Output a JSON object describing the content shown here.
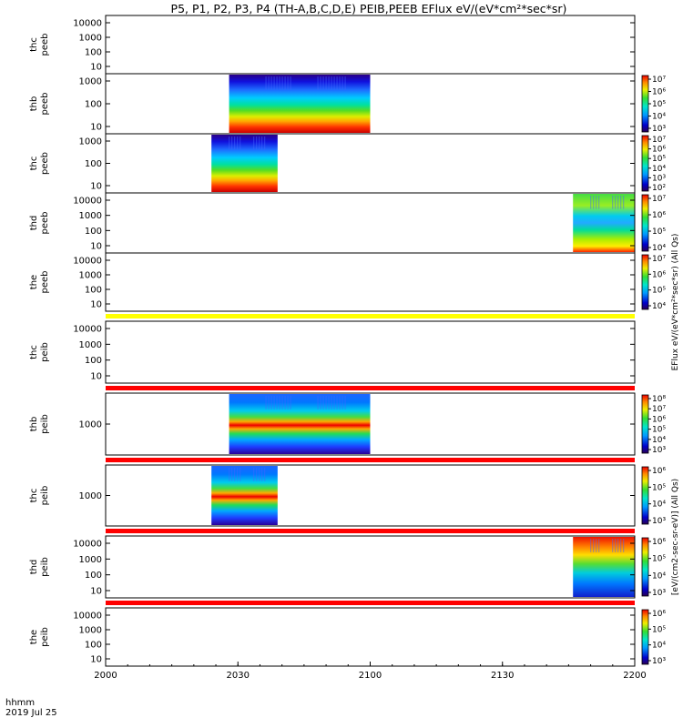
{
  "chart_data": {
    "type": "heatmap",
    "title": "P5, P1, P2, P3, P4 (TH-A,B,C,D,E) PEIB,PEEB EFlux eV/(eV*cm²*sec*sr)",
    "time_unit_label": "hhmm",
    "date_label": "2019 Jul 25",
    "x_ticks": [
      "2000",
      "2030",
      "2100",
      "2130",
      "2200"
    ],
    "x_range": [
      "2000",
      "2200"
    ],
    "eflux_label_peeb": "EFlux eV/(eV*cm²*sec*sr) (All Qs)",
    "eflux_label_peib": "[eV/(cm2-sec-sr-eV)] (All Qs)",
    "panels": [
      {
        "probe": "thc",
        "instrument": "peeb",
        "y_ticks": [
          "10000",
          "1000",
          "100",
          "10"
        ],
        "log_scale": true,
        "colorbar": false,
        "data_span": null
      },
      {
        "probe": "thb",
        "instrument": "peeb",
        "y_ticks": [
          "1000",
          "100",
          "10"
        ],
        "log_scale": true,
        "colorbar": true,
        "colorbar_ticks": [
          "10⁷",
          "10⁶",
          "10⁵",
          "10⁴",
          "10³"
        ],
        "data_span": [
          "2028",
          "2100"
        ]
      },
      {
        "probe": "thc",
        "instrument": "peeb",
        "y_ticks": [
          "1000",
          "100",
          "10"
        ],
        "log_scale": true,
        "colorbar": true,
        "colorbar_ticks": [
          "10⁷",
          "10⁶",
          "10⁵",
          "10⁴",
          "10³",
          "10²"
        ],
        "data_span": [
          "2024",
          "2039"
        ]
      },
      {
        "probe": "thd",
        "instrument": "peeb",
        "y_ticks": [
          "10000",
          "1000",
          "100",
          "10"
        ],
        "log_scale": true,
        "colorbar": true,
        "colorbar_ticks": [
          "10⁷",
          "10⁶",
          "10⁵",
          "10⁴"
        ],
        "data_span": [
          "2146",
          "2200"
        ]
      },
      {
        "probe": "the",
        "instrument": "peeb",
        "y_ticks": [
          "10000",
          "1000",
          "100",
          "10"
        ],
        "log_scale": true,
        "colorbar": true,
        "colorbar_ticks": [
          "10⁷",
          "10⁶",
          "10⁵",
          "10⁴"
        ],
        "data_span": null
      },
      {
        "probe": "thc",
        "instrument": "peib",
        "y_ticks": [
          "10000",
          "1000",
          "100",
          "10"
        ],
        "log_scale": true,
        "colorbar": false,
        "data_span": null
      },
      {
        "probe": "thb",
        "instrument": "peib",
        "y_ticks": [
          "1000"
        ],
        "log_scale": true,
        "colorbar": true,
        "colorbar_ticks": [
          "10⁸",
          "10⁷",
          "10⁶",
          "10⁵",
          "10⁴",
          "10³"
        ],
        "data_span": [
          "2028",
          "2100"
        ]
      },
      {
        "probe": "thc",
        "instrument": "peib",
        "y_ticks": [
          "1000"
        ],
        "log_scale": true,
        "colorbar": true,
        "colorbar_ticks": [
          "10⁶",
          "10⁵",
          "10⁴",
          "10³"
        ],
        "data_span": [
          "2024",
          "2039"
        ]
      },
      {
        "probe": "thd",
        "instrument": "peib",
        "y_ticks": [
          "10000",
          "1000",
          "100",
          "10"
        ],
        "log_scale": true,
        "colorbar": true,
        "colorbar_ticks": [
          "10⁶",
          "10⁵",
          "10⁴",
          "10³"
        ],
        "data_span": [
          "2146",
          "2200"
        ]
      },
      {
        "probe": "the",
        "instrument": "peib",
        "y_ticks": [
          "10000",
          "1000",
          "100",
          "10"
        ],
        "log_scale": true,
        "colorbar": true,
        "colorbar_ticks": [
          "10⁶",
          "10⁵",
          "10⁴",
          "10³"
        ],
        "data_span": null
      }
    ],
    "gap_bars": [
      {
        "after_panel": 4,
        "color": "#ffff00"
      },
      {
        "after_panel": 5,
        "color": "#ff0000"
      },
      {
        "after_panel": 6,
        "color": "#ff0000"
      },
      {
        "after_panel": 7,
        "color": "#ff0000"
      },
      {
        "after_panel": 8,
        "color": "#ff0000"
      }
    ],
    "colormap": "rainbow (purple → blue → cyan → green → yellow → red)",
    "grid": false,
    "legend": "none"
  }
}
